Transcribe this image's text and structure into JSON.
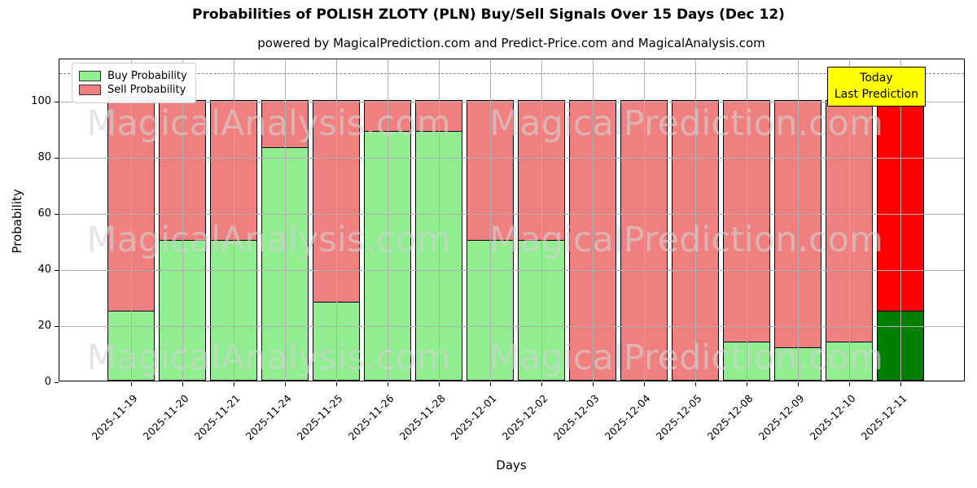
{
  "header": {
    "title": "Probabilities of POLISH ZLOTY (PLN) Buy/Sell Signals Over 15 Days (Dec 12)",
    "subtitle": "powered by MagicalPrediction.com and Predict-Price.com and MagicalAnalysis.com"
  },
  "axes": {
    "xlabel": "Days",
    "ylabel": "Probability",
    "yticks": [
      0,
      20,
      40,
      60,
      80,
      100
    ]
  },
  "legend": {
    "items": [
      {
        "label": "Buy Probability",
        "color": "#90EE90"
      },
      {
        "label": "Sell Probability",
        "color": "#F08080"
      }
    ]
  },
  "annotation": {
    "line1": "Today",
    "line2": "Last Prediction",
    "bg": "#FFFF00"
  },
  "watermarks": {
    "left": "MagicalAnalysis.com",
    "right": "MagicalPrediction.com"
  },
  "colors": {
    "buy": "#90EE90",
    "sell": "#F08080",
    "today_buy": "#008000",
    "today_sell": "#FF0000",
    "today_edge_top": "#FFA500",
    "grid": "#b0b0b0",
    "guide_line": "#888888",
    "annotation_bg": "#FFFF00"
  },
  "chart_data": {
    "type": "bar",
    "stacked": true,
    "title": "Probabilities of POLISH ZLOTY (PLN) Buy/Sell Signals Over 15 Days (Dec 12)",
    "xlabel": "Days",
    "ylabel": "Probability",
    "categories": [
      "2025-11-19",
      "2025-11-20",
      "2025-11-21",
      "2025-11-24",
      "2025-11-25",
      "2025-11-26",
      "2025-11-28",
      "2025-12-01",
      "2025-12-02",
      "2025-12-03",
      "2025-12-04",
      "2025-12-05",
      "2025-12-08",
      "2025-12-09",
      "2025-12-10",
      "2025-12-11"
    ],
    "series": [
      {
        "name": "Buy Probability",
        "color": "#90EE90",
        "values": [
          25,
          50,
          50,
          83,
          28,
          89,
          89,
          50,
          50,
          0,
          0,
          0,
          14,
          12,
          14,
          25
        ]
      },
      {
        "name": "Sell Probability",
        "color": "#F08080",
        "values": [
          75,
          50,
          50,
          17,
          72,
          11,
          11,
          50,
          50,
          100,
          100,
          100,
          86,
          88,
          86,
          75
        ]
      }
    ],
    "today_index": 15,
    "today_colors": {
      "buy": "#008000",
      "sell": "#FF0000",
      "edge_top": "#FFA500"
    },
    "ylim": [
      0,
      115
    ],
    "yticks": [
      0,
      20,
      40,
      60,
      80,
      100
    ],
    "dashed_guide_y": 110,
    "grid": true,
    "legend_position": "upper left"
  }
}
